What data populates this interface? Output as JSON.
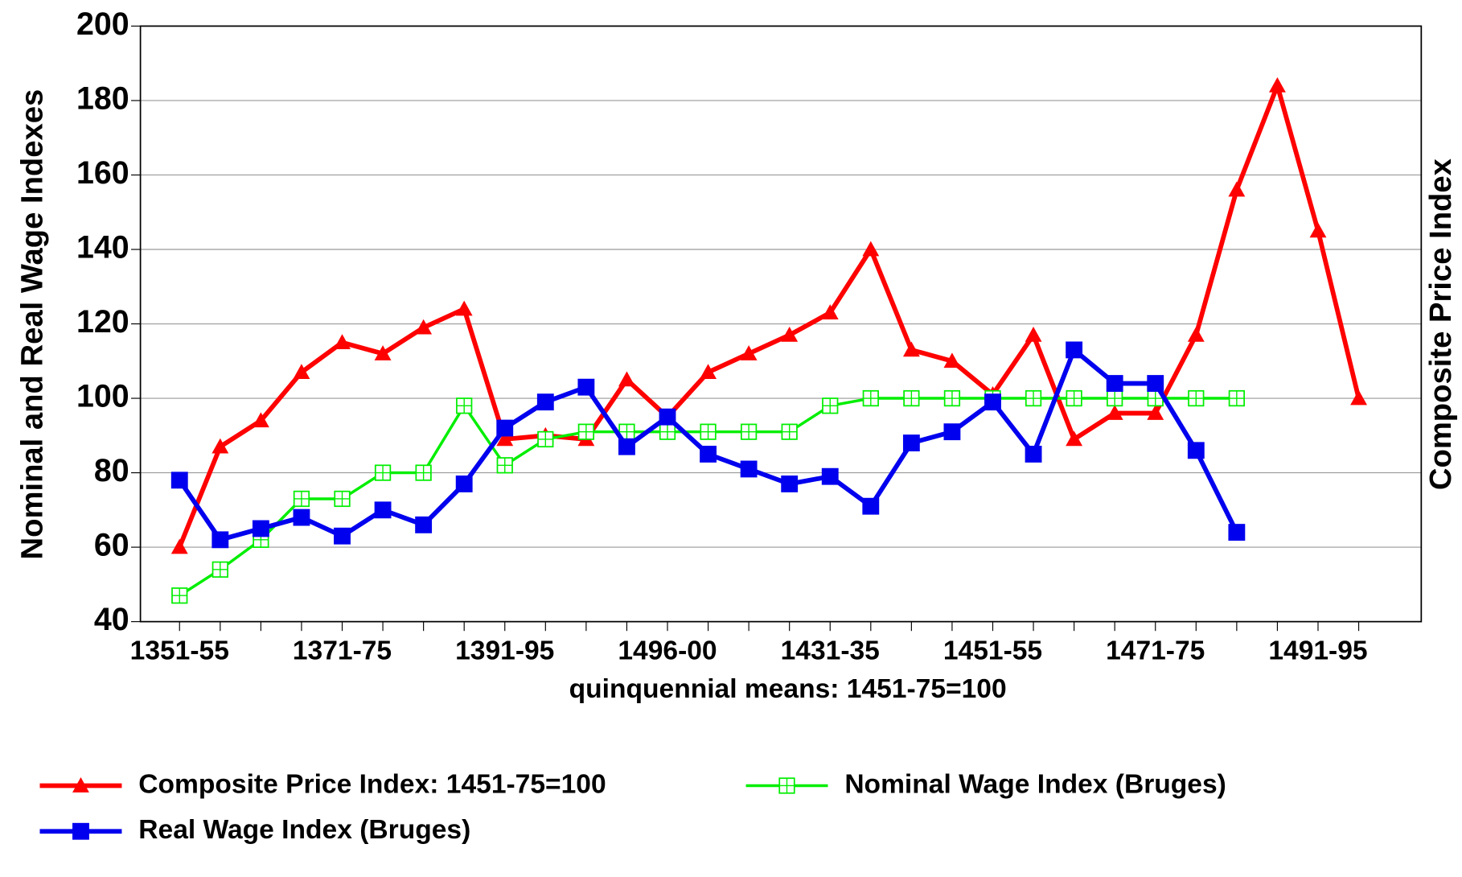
{
  "chart_data": {
    "type": "line",
    "x_label": "quinquennial means: 1451-75=100",
    "y_label": "Nominal and Real Wage Indexes",
    "y2_label": "Composite Price Index",
    "categories": [
      "1351-55",
      null,
      null,
      null,
      "1371-75",
      null,
      null,
      null,
      "1391-95",
      null,
      null,
      null,
      "1496-00",
      null,
      null,
      null,
      "1431-35",
      null,
      null,
      null,
      "1451-55",
      null,
      null,
      null,
      "1471-75",
      null,
      null,
      null,
      "1491-95",
      null
    ],
    "ylim": [
      40,
      200
    ],
    "yticks": [
      40,
      60,
      80,
      100,
      120,
      140,
      160,
      180,
      200
    ],
    "grid": true,
    "series": [
      {
        "name": "Composite Price Index: 1451-75=100",
        "color": "#ff0000",
        "marker": "triangle",
        "values": [
          60,
          87,
          94,
          107,
          115,
          112,
          119,
          124,
          89,
          90,
          89,
          105,
          95,
          107,
          112,
          117,
          123,
          140,
          113,
          110,
          101,
          117,
          89,
          96,
          96,
          117,
          156,
          184,
          145,
          100
        ]
      },
      {
        "name": "Nominal Wage Index (Bruges)",
        "color": "#00ee00",
        "marker": "crossed-square",
        "values": [
          47,
          54,
          62,
          73,
          73,
          80,
          80,
          98,
          82,
          89,
          91,
          91,
          91,
          91,
          91,
          91,
          98,
          100,
          100,
          100,
          100,
          100,
          100,
          100,
          100,
          100,
          100,
          null,
          null,
          null
        ]
      },
      {
        "name": "Real Wage Index (Bruges)",
        "color": "#0000ee",
        "marker": "square",
        "values": [
          78,
          62,
          65,
          68,
          63,
          70,
          66,
          77,
          92,
          99,
          103,
          87,
          95,
          85,
          81,
          77,
          79,
          71,
          88,
          91,
          99,
          85,
          113,
          104,
          104,
          86,
          64,
          null,
          null,
          null
        ]
      }
    ]
  }
}
